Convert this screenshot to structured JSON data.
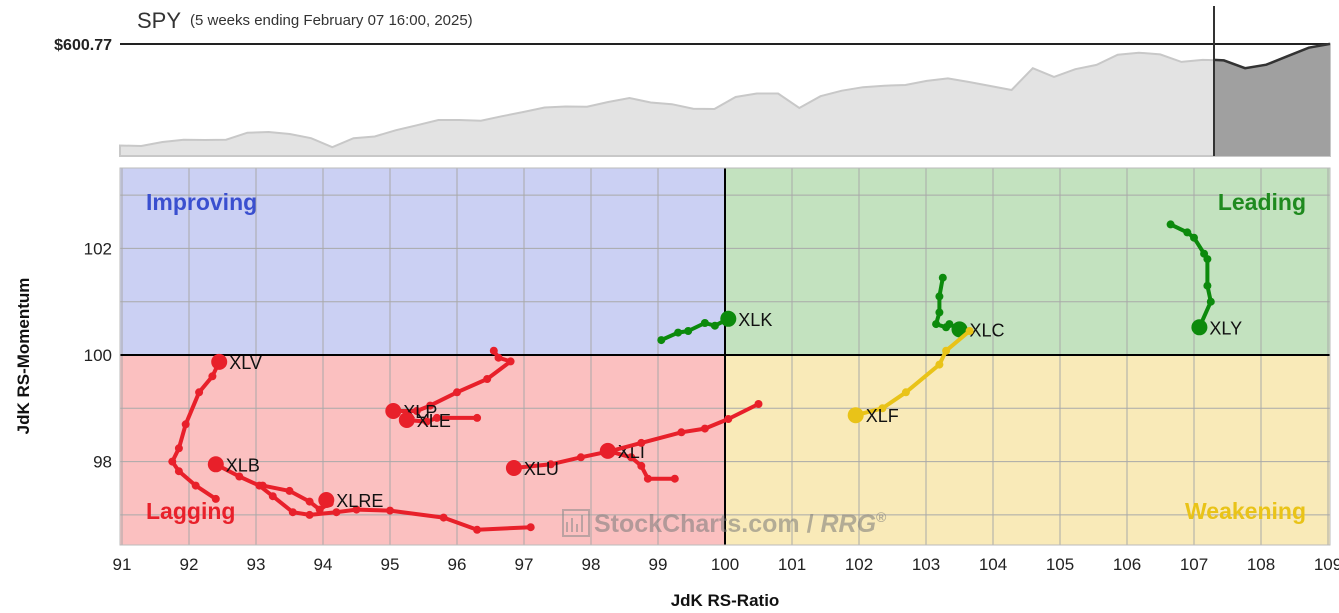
{
  "header": {
    "symbol": "SPY",
    "subtitle": "(5 weeks ending February 07 16:00, 2025)",
    "price_label": "$600.77"
  },
  "watermark": {
    "brand": "StockCharts.com",
    "slash": " / ",
    "product": "RRG",
    "reg": "®"
  },
  "chart_data": [
    {
      "type": "area",
      "name": "benchmark-price",
      "title": "SPY",
      "reference_value_label": "$600.77",
      "values": [
        560.2,
        560.0,
        561.6,
        562.5,
        562.4,
        562.5,
        565.3,
        565.6,
        564.8,
        563.1,
        559.5,
        563.1,
        563.8,
        566.3,
        568.3,
        570.4,
        570.4,
        570.1,
        571.9,
        573.6,
        575.4,
        575.8,
        575.7,
        577.6,
        579.2,
        577.4,
        576.7,
        574.9,
        574.8,
        579.6,
        581.0,
        581.0,
        575.2,
        579.9,
        582.1,
        583.5,
        584.1,
        584.4,
        586.0,
        587.0,
        585.6,
        584.0,
        582.4,
        591.1,
        587.6,
        590.7,
        592.4,
        596.5,
        597.3,
        596.6,
        593.6,
        594.4,
        594.2,
        591.1,
        592.5,
        595.9,
        599.3,
        600.8
      ],
      "highlighted_last_points": 6
    },
    {
      "type": "scatter",
      "name": "relative-rotation-graph",
      "xlabel": "JdK RS-Ratio",
      "ylabel": "JdK RS-Momentum",
      "xlim": [
        91,
        109
      ],
      "ylim": [
        96.4,
        103.6
      ],
      "x_ticks": [
        91,
        92,
        93,
        94,
        95,
        96,
        97,
        98,
        99,
        100,
        101,
        102,
        103,
        104,
        105,
        106,
        107,
        108,
        109
      ],
      "y_ticks": [
        98,
        100,
        102
      ],
      "grid": true,
      "center": [
        100,
        100
      ],
      "quadrants": [
        {
          "label": "Improving",
          "position": "top-left",
          "fill": "#cbd0f3",
          "text_color": "#3a4fcf"
        },
        {
          "label": "Leading",
          "position": "top-right",
          "fill": "#c3e2bf",
          "text_color": "#1f8a1f"
        },
        {
          "label": "Lagging",
          "position": "bottom-left",
          "fill": "#fbc0c0",
          "text_color": "#e8202a"
        },
        {
          "label": "Weakening",
          "position": "bottom-right",
          "fill": "#f9eab8",
          "text_color": "#e9c318"
        }
      ],
      "series": [
        {
          "name": "XLK",
          "color": "#0c8a0c",
          "label_side": "right",
          "points": [
            [
              99.05,
              100.28
            ],
            [
              99.3,
              100.42
            ],
            [
              99.45,
              100.45
            ],
            [
              99.7,
              100.6
            ],
            [
              99.85,
              100.55
            ],
            [
              100.05,
              100.68
            ]
          ]
        },
        {
          "name": "XLC",
          "color": "#0c8a0c",
          "label_side": "right",
          "points": [
            [
              103.25,
              101.45
            ],
            [
              103.2,
              101.1
            ],
            [
              103.2,
              100.8
            ],
            [
              103.15,
              100.58
            ],
            [
              103.3,
              100.52
            ],
            [
              103.35,
              100.58
            ],
            [
              103.5,
              100.48
            ]
          ]
        },
        {
          "name": "XLY",
          "color": "#0c8a0c",
          "label_side": "right",
          "points": [
            [
              106.65,
              102.45
            ],
            [
              106.9,
              102.3
            ],
            [
              107.0,
              102.2
            ],
            [
              107.15,
              101.9
            ],
            [
              107.2,
              101.8
            ],
            [
              107.2,
              101.3
            ],
            [
              107.25,
              101.0
            ],
            [
              107.08,
              100.52
            ]
          ]
        },
        {
          "name": "XLF",
          "color": "#e9c318",
          "label_side": "right",
          "points": [
            [
              103.65,
              100.45
            ],
            [
              103.3,
              100.08
            ],
            [
              103.2,
              99.82
            ],
            [
              102.7,
              99.3
            ],
            [
              102.35,
              99.0
            ],
            [
              101.95,
              98.87
            ]
          ]
        },
        {
          "name": "XLV",
          "color": "#e8202a",
          "label_side": "right",
          "points": [
            [
              92.4,
              97.3
            ],
            [
              92.1,
              97.55
            ],
            [
              91.85,
              97.82
            ],
            [
              91.75,
              98.0
            ],
            [
              91.85,
              98.25
            ],
            [
              91.95,
              98.7
            ],
            [
              92.15,
              99.3
            ],
            [
              92.35,
              99.6
            ],
            [
              92.45,
              99.87
            ]
          ]
        },
        {
          "name": "XLB",
          "color": "#e8202a",
          "label_side": "right",
          "points": [
            [
              97.1,
              96.77
            ],
            [
              96.3,
              96.72
            ],
            [
              95.8,
              96.95
            ],
            [
              95.0,
              97.08
            ],
            [
              94.5,
              97.1
            ],
            [
              94.2,
              97.05
            ],
            [
              93.8,
              97.0
            ],
            [
              93.55,
              97.05
            ],
            [
              93.25,
              97.35
            ],
            [
              93.05,
              97.55
            ],
            [
              92.75,
              97.72
            ],
            [
              92.4,
              97.95
            ]
          ]
        },
        {
          "name": "XLRE",
          "color": "#e8202a",
          "label_side": "right",
          "points": [
            [
              93.1,
              97.55
            ],
            [
              93.5,
              97.45
            ],
            [
              93.8,
              97.25
            ],
            [
              93.95,
              97.1
            ],
            [
              94.1,
              97.22
            ],
            [
              94.05,
              97.28
            ]
          ]
        },
        {
          "name": "XLP",
          "color": "#e8202a",
          "label_side": "right",
          "points": [
            [
              96.55,
              100.08
            ],
            [
              96.62,
              99.95
            ],
            [
              96.8,
              99.88
            ],
            [
              96.45,
              99.55
            ],
            [
              96.0,
              99.3
            ],
            [
              95.6,
              99.05
            ],
            [
              95.4,
              98.95
            ],
            [
              95.05,
              98.95
            ]
          ]
        },
        {
          "name": "XLE",
          "color": "#e8202a",
          "label_side": "right",
          "points": [
            [
              96.3,
              98.82
            ],
            [
              95.7,
              98.82
            ],
            [
              95.55,
              98.75
            ],
            [
              95.25,
              98.78
            ]
          ]
        },
        {
          "name": "XLI",
          "color": "#e8202a",
          "label_side": "right",
          "points": [
            [
              99.25,
              97.68
            ],
            [
              98.85,
              97.68
            ],
            [
              98.75,
              97.92
            ],
            [
              98.6,
              98.08
            ],
            [
              98.25,
              98.2
            ]
          ]
        },
        {
          "name": "XLU",
          "color": "#e8202a",
          "label_side": "right",
          "points": [
            [
              100.5,
              99.08
            ],
            [
              100.05,
              98.8
            ],
            [
              99.7,
              98.62
            ],
            [
              99.35,
              98.55
            ],
            [
              98.75,
              98.35
            ],
            [
              98.3,
              98.2
            ],
            [
              97.85,
              98.08
            ],
            [
              97.4,
              97.95
            ],
            [
              96.85,
              97.88
            ]
          ]
        }
      ]
    }
  ]
}
